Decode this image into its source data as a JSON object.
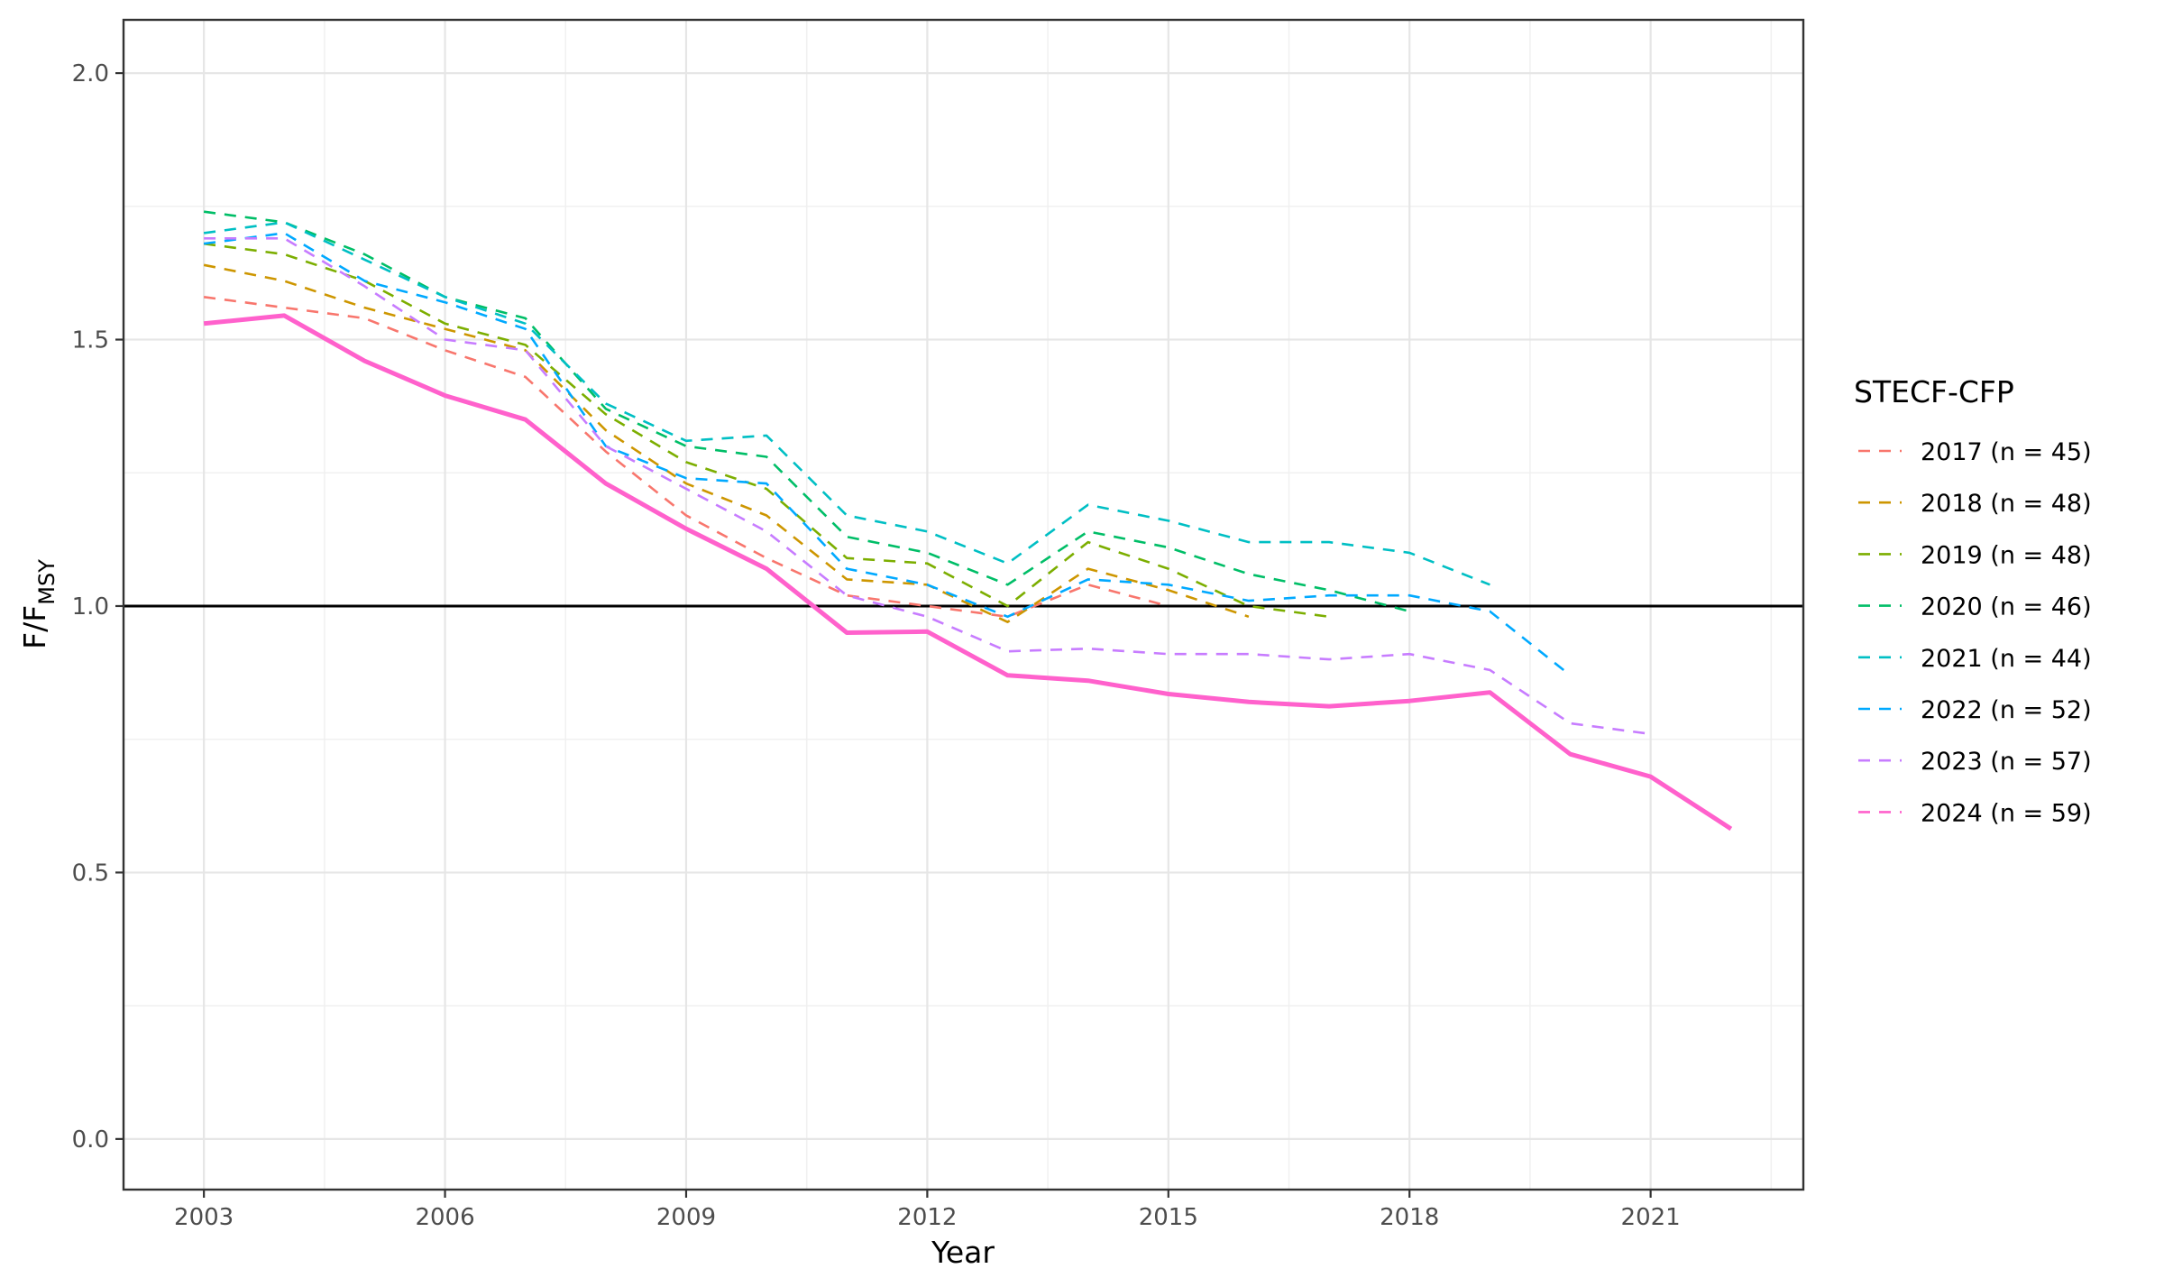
{
  "chart_data": {
    "type": "line",
    "xlabel": "Year",
    "ylabel": "F/F",
    "ylabel_subscript": "MSY",
    "xlim": [
      2002.0,
      2022.9
    ],
    "ylim": [
      -0.095,
      2.1
    ],
    "x_ticks": [
      2003,
      2006,
      2009,
      2012,
      2015,
      2018,
      2021
    ],
    "y_ticks": [
      0.0,
      0.5,
      1.0,
      1.5,
      2.0
    ],
    "y_tick_labels": [
      "0.0",
      "0.5",
      "1.0",
      "1.5",
      "2.0"
    ],
    "reference_line": {
      "y": 1.0,
      "color": "#000000"
    },
    "grid": true,
    "legend": {
      "title": "STECF-CFP",
      "position": "right"
    },
    "series": [
      {
        "name": "2017 (n = 45)",
        "color": "#F8766D",
        "dash": "dashed",
        "x": [
          2003,
          2004,
          2005,
          2006,
          2007,
          2008,
          2009,
          2010,
          2011,
          2012,
          2013,
          2014,
          2015
        ],
        "values": [
          1.58,
          1.56,
          1.54,
          1.48,
          1.43,
          1.29,
          1.17,
          1.09,
          1.02,
          1.0,
          0.98,
          1.04,
          1.0
        ]
      },
      {
        "name": "2018 (n = 48)",
        "color": "#CD9600",
        "dash": "dashed",
        "x": [
          2003,
          2004,
          2005,
          2006,
          2007,
          2008,
          2009,
          2010,
          2011,
          2012,
          2013,
          2014,
          2015,
          2016
        ],
        "values": [
          1.64,
          1.61,
          1.56,
          1.52,
          1.48,
          1.33,
          1.23,
          1.17,
          1.05,
          1.04,
          0.97,
          1.07,
          1.03,
          0.98
        ]
      },
      {
        "name": "2019 (n = 48)",
        "color": "#7CAE00",
        "dash": "dashed",
        "x": [
          2003,
          2004,
          2005,
          2006,
          2007,
          2008,
          2009,
          2010,
          2011,
          2012,
          2013,
          2014,
          2015,
          2016,
          2017
        ],
        "values": [
          1.68,
          1.66,
          1.61,
          1.53,
          1.49,
          1.36,
          1.27,
          1.22,
          1.09,
          1.08,
          1.0,
          1.12,
          1.07,
          1.0,
          0.98
        ]
      },
      {
        "name": "2020 (n = 46)",
        "color": "#00BE67",
        "dash": "dashed",
        "x": [
          2003,
          2004,
          2005,
          2006,
          2007,
          2008,
          2009,
          2010,
          2011,
          2012,
          2013,
          2014,
          2015,
          2016,
          2017,
          2018
        ],
        "values": [
          1.74,
          1.72,
          1.66,
          1.58,
          1.54,
          1.37,
          1.3,
          1.28,
          1.13,
          1.1,
          1.04,
          1.14,
          1.11,
          1.06,
          1.03,
          0.99
        ]
      },
      {
        "name": "2021 (n = 44)",
        "color": "#00BFC4",
        "dash": "dashed",
        "x": [
          2003,
          2004,
          2005,
          2006,
          2007,
          2008,
          2009,
          2010,
          2011,
          2012,
          2013,
          2014,
          2015,
          2016,
          2017,
          2018,
          2019
        ],
        "values": [
          1.7,
          1.72,
          1.65,
          1.58,
          1.53,
          1.38,
          1.31,
          1.32,
          1.17,
          1.14,
          1.08,
          1.19,
          1.16,
          1.12,
          1.12,
          1.1,
          1.04
        ]
      },
      {
        "name": "2022 (n = 52)",
        "color": "#00A9FF",
        "dash": "dashed",
        "x": [
          2003,
          2004,
          2005,
          2006,
          2007,
          2008,
          2009,
          2010,
          2011,
          2012,
          2013,
          2014,
          2015,
          2016,
          2017,
          2018,
          2019,
          2020
        ],
        "values": [
          1.68,
          1.7,
          1.61,
          1.57,
          1.52,
          1.3,
          1.24,
          1.23,
          1.07,
          1.04,
          0.98,
          1.05,
          1.04,
          1.01,
          1.02,
          1.02,
          0.99,
          0.87
        ]
      },
      {
        "name": "2023 (n = 57)",
        "color": "#C77CFF",
        "dash": "dashed",
        "x": [
          2003,
          2004,
          2005,
          2006,
          2007,
          2008,
          2009,
          2010,
          2011,
          2012,
          2013,
          2014,
          2015,
          2016,
          2017,
          2018,
          2019,
          2020,
          2021
        ],
        "values": [
          1.69,
          1.69,
          1.6,
          1.5,
          1.48,
          1.3,
          1.22,
          1.14,
          1.02,
          0.98,
          0.915,
          0.92,
          0.91,
          0.91,
          0.9,
          0.91,
          0.88,
          0.78,
          0.76
        ]
      },
      {
        "name": "2024 (n = 59)",
        "color": "#FF61CC",
        "dash": "solid",
        "x": [
          2003,
          2004,
          2005,
          2006,
          2007,
          2008,
          2009,
          2010,
          2011,
          2012,
          2013,
          2014,
          2015,
          2016,
          2017,
          2018,
          2019,
          2020,
          2021,
          2022
        ],
        "values": [
          1.53,
          1.545,
          1.46,
          1.395,
          1.35,
          1.23,
          1.145,
          1.07,
          0.95,
          0.952,
          0.87,
          0.86,
          0.835,
          0.82,
          0.812,
          0.822,
          0.838,
          0.722,
          0.68,
          0.582
        ]
      }
    ]
  }
}
